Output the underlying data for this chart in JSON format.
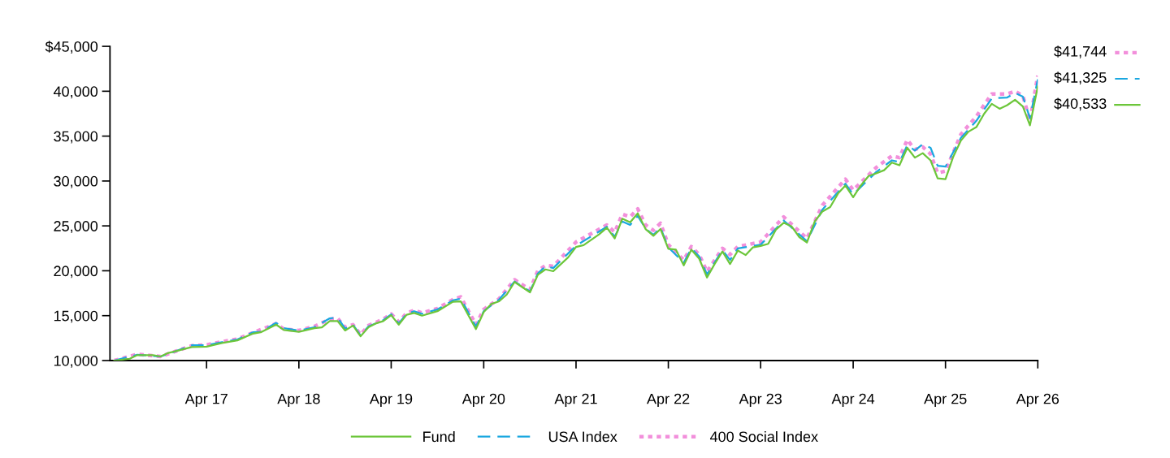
{
  "chart_data": {
    "type": "line",
    "xlim": [
      "2016-03-15",
      "2026-04"
    ],
    "xticks": [
      {
        "value": "2017-04",
        "label": "Apr 17"
      },
      {
        "value": "2018-04",
        "label": "Apr 18"
      },
      {
        "value": "2019-04",
        "label": "Apr 19"
      },
      {
        "value": "2020-04",
        "label": "Apr 20"
      },
      {
        "value": "2021-04",
        "label": "Apr 21"
      },
      {
        "value": "2022-04",
        "label": "Apr 22"
      },
      {
        "value": "2023-04",
        "label": "Apr 23"
      },
      {
        "value": "2024-04",
        "label": "Apr 24"
      },
      {
        "value": "2025-04",
        "label": "Apr 25"
      },
      {
        "value": "2026-04",
        "label": "Apr 26"
      }
    ],
    "ylim": [
      10000,
      45000
    ],
    "yticks": [
      {
        "value": 10000,
        "label": "10,000"
      },
      {
        "value": 15000,
        "label": "15,000"
      },
      {
        "value": 20000,
        "label": "20,000"
      },
      {
        "value": 25000,
        "label": "25,000"
      },
      {
        "value": 30000,
        "label": "30,000"
      },
      {
        "value": 35000,
        "label": "35,000"
      },
      {
        "value": 40000,
        "label": "40,000"
      },
      {
        "value": 45000,
        "label": "$45,000"
      }
    ],
    "grid": false,
    "legend": "bottom",
    "series": [
      {
        "name": "Fund",
        "color": "#6cc63a",
        "line_style": "solid",
        "x": [
          "2016-04",
          "2016-06",
          "2016-07",
          "2016-09",
          "2016-10",
          "2016-11",
          "2016-12",
          "2017-02",
          "2017-04",
          "2017-06",
          "2017-08",
          "2017-10",
          "2017-11",
          "2018-01",
          "2018-02",
          "2018-04",
          "2018-06",
          "2018-07",
          "2018-08",
          "2018-09",
          "2018-10",
          "2018-11",
          "2018-12",
          "2019-01",
          "2019-02",
          "2019-03",
          "2019-04",
          "2019-05",
          "2019-06",
          "2019-07",
          "2019-08",
          "2019-10",
          "2019-12",
          "2020-01",
          "2020-03",
          "2020-04",
          "2020-05",
          "2020-06",
          "2020-07",
          "2020-08",
          "2020-10",
          "2020-11",
          "2020-12",
          "2021-01",
          "2021-03",
          "2021-04",
          "2021-05",
          "2021-07",
          "2021-08",
          "2021-09",
          "2021-10",
          "2021-11",
          "2021-12",
          "2022-01",
          "2022-02",
          "2022-03",
          "2022-04",
          "2022-05",
          "2022-06",
          "2022-07",
          "2022-08",
          "2022-09",
          "2022-10",
          "2022-11",
          "2022-12",
          "2023-01",
          "2023-02",
          "2023-03",
          "2023-04",
          "2023-05",
          "2023-06",
          "2023-07",
          "2023-08",
          "2023-09",
          "2023-10",
          "2023-11",
          "2023-12",
          "2024-01",
          "2024-02",
          "2024-03",
          "2024-04",
          "2024-05",
          "2024-06",
          "2024-07",
          "2024-08",
          "2024-09",
          "2024-10",
          "2024-11",
          "2024-12",
          "2025-01",
          "2025-02",
          "2025-03",
          "2025-04",
          "2025-05",
          "2025-06",
          "2025-07",
          "2025-08",
          "2025-09",
          "2025-10",
          "2025-11",
          "2025-12",
          "2026-01",
          "2026-02",
          "2026-03",
          "2026-04"
        ],
        "values": [
          10000,
          10200,
          10600,
          10600,
          10450,
          10850,
          11050,
          11500,
          11550,
          11950,
          12250,
          13000,
          13150,
          14000,
          13400,
          13200,
          13600,
          13700,
          14400,
          14400,
          13350,
          13900,
          12700,
          13700,
          14150,
          14400,
          15050,
          14000,
          15100,
          15300,
          15000,
          15500,
          16550,
          16600,
          13500,
          15400,
          16300,
          16600,
          17350,
          18750,
          17600,
          19550,
          20150,
          19950,
          21500,
          22650,
          22850,
          24050,
          24800,
          23600,
          25800,
          25400,
          26400,
          24650,
          23900,
          24650,
          22450,
          22350,
          20600,
          22350,
          21350,
          19250,
          20750,
          22150,
          20750,
          22250,
          21750,
          22600,
          22770,
          23000,
          24600,
          25350,
          24950,
          23750,
          23150,
          25500,
          26600,
          27100,
          28600,
          29500,
          28200,
          29500,
          30550,
          30850,
          31200,
          32050,
          31750,
          33700,
          32600,
          33100,
          32300,
          30300,
          30200,
          32650,
          34500,
          35500,
          36000,
          37500,
          38600,
          38050,
          38450,
          39050,
          38300,
          36200,
          40533
        ],
        "value_labels": [
          null,
          null,
          null,
          null,
          null,
          null,
          null,
          null,
          null,
          null,
          null,
          null,
          null,
          null,
          null,
          null,
          null,
          null,
          null,
          null,
          null,
          null,
          null,
          null,
          null,
          null,
          null,
          null,
          null,
          null,
          null,
          null,
          null,
          null,
          null,
          null,
          null,
          null,
          null,
          null,
          null,
          null,
          null,
          null,
          null,
          null,
          null,
          null,
          null,
          null,
          null,
          null,
          null,
          null,
          null,
          null,
          null,
          null,
          null,
          null,
          null,
          null,
          null,
          null,
          null,
          null,
          null,
          null,
          null,
          null,
          null,
          null,
          null,
          null,
          null,
          null,
          null,
          null,
          null,
          null,
          null,
          null,
          null,
          null,
          null,
          null,
          null,
          null,
          null,
          null,
          null,
          null,
          null,
          null,
          null,
          null,
          null,
          null,
          null,
          null,
          null,
          null,
          null,
          null,
          "$40,533"
        ]
      },
      {
        "name": "USA Index",
        "color": "#1aa7e0",
        "line_style": "dashed",
        "x": [
          "2016-04",
          "2016-07",
          "2016-10",
          "2016-12",
          "2017-02",
          "2017-04",
          "2017-06",
          "2017-08",
          "2017-10",
          "2017-11",
          "2018-01",
          "2018-02",
          "2018-04",
          "2018-06",
          "2018-08",
          "2018-09",
          "2018-10",
          "2018-11",
          "2018-12",
          "2019-01",
          "2019-03",
          "2019-04",
          "2019-05",
          "2019-06",
          "2019-07",
          "2019-08",
          "2019-10",
          "2019-12",
          "2020-01",
          "2020-03",
          "2020-04",
          "2020-06",
          "2020-08",
          "2020-10",
          "2020-11",
          "2020-12",
          "2021-01",
          "2021-04",
          "2021-08",
          "2021-09",
          "2021-10",
          "2021-11",
          "2021-12",
          "2022-01",
          "2022-02",
          "2022-03",
          "2022-04",
          "2022-06",
          "2022-07",
          "2022-08",
          "2022-09",
          "2022-11",
          "2022-12",
          "2023-01",
          "2023-04",
          "2023-07",
          "2023-10",
          "2023-12",
          "2024-03",
          "2024-04",
          "2024-07",
          "2024-09",
          "2024-10",
          "2024-11",
          "2024-12",
          "2025-01",
          "2025-02",
          "2025-03",
          "2025-04",
          "2025-06",
          "2025-08",
          "2025-10",
          "2025-12",
          "2026-01",
          "2026-02",
          "2026-03",
          "2026-04"
        ],
        "values": [
          10000,
          10650,
          10450,
          11050,
          11700,
          11700,
          12050,
          12350,
          13150,
          13200,
          14200,
          13600,
          13350,
          13700,
          14700,
          14800,
          13550,
          14000,
          12800,
          13800,
          14500,
          15150,
          14150,
          15200,
          15500,
          15200,
          15700,
          16700,
          16900,
          13800,
          15500,
          16800,
          18800,
          17700,
          19700,
          20500,
          20300,
          22800,
          24900,
          23800,
          25500,
          25100,
          26100,
          24700,
          24000,
          24800,
          22600,
          20900,
          22500,
          21600,
          19600,
          22300,
          21200,
          22500,
          22900,
          25600,
          23300,
          26800,
          29700,
          28500,
          31000,
          32300,
          32100,
          34000,
          33400,
          34100,
          33700,
          31700,
          31600,
          34800,
          36700,
          39200,
          39300,
          39800,
          39400,
          37000,
          41325
        ],
        "value_labels": [
          null,
          null,
          null,
          null,
          null,
          null,
          null,
          null,
          null,
          null,
          null,
          null,
          null,
          null,
          null,
          null,
          null,
          null,
          null,
          null,
          null,
          null,
          null,
          null,
          null,
          null,
          null,
          null,
          null,
          null,
          null,
          null,
          null,
          null,
          null,
          null,
          null,
          null,
          null,
          null,
          null,
          null,
          null,
          null,
          null,
          null,
          null,
          null,
          null,
          null,
          null,
          null,
          null,
          null,
          null,
          null,
          null,
          null,
          null,
          null,
          null,
          null,
          null,
          null,
          null,
          null,
          null,
          null,
          null,
          null,
          null,
          null,
          null,
          null,
          null,
          null,
          "$41,325"
        ]
      },
      {
        "name": "400 Social Index",
        "color": "#f28fdb",
        "line_style": "dotted",
        "x": [
          "2016-04",
          "2016-07",
          "2016-10",
          "2016-12",
          "2017-02",
          "2017-04",
          "2017-06",
          "2017-08",
          "2017-10",
          "2018-01",
          "2018-02",
          "2018-04",
          "2018-06",
          "2018-08",
          "2018-09",
          "2018-10",
          "2018-11",
          "2018-12",
          "2019-01",
          "2019-03",
          "2019-04",
          "2019-05",
          "2019-06",
          "2019-07",
          "2019-08",
          "2019-10",
          "2019-12",
          "2020-01",
          "2020-03",
          "2020-04",
          "2020-06",
          "2020-08",
          "2020-10",
          "2020-11",
          "2020-12",
          "2021-01",
          "2021-04",
          "2021-08",
          "2021-09",
          "2021-10",
          "2021-11",
          "2021-12",
          "2022-01",
          "2022-02",
          "2022-03",
          "2022-04",
          "2022-06",
          "2022-07",
          "2022-08",
          "2022-09",
          "2022-11",
          "2022-12",
          "2023-01",
          "2023-04",
          "2023-07",
          "2023-10",
          "2023-12",
          "2024-03",
          "2024-04",
          "2024-07",
          "2024-09",
          "2024-10",
          "2024-11",
          "2024-12",
          "2025-01",
          "2025-02",
          "2025-03",
          "2025-04",
          "2025-06",
          "2025-08",
          "2025-10",
          "2025-12",
          "2026-01",
          "2026-02",
          "2026-03",
          "2026-04"
        ],
        "values": [
          10000,
          10700,
          10450,
          11050,
          11650,
          11750,
          12100,
          12400,
          13100,
          14100,
          13500,
          13350,
          13800,
          14600,
          14700,
          13700,
          14000,
          12900,
          13900,
          14600,
          15200,
          14300,
          15300,
          15600,
          15300,
          15800,
          16800,
          17100,
          14000,
          15700,
          16900,
          19000,
          17900,
          20000,
          20600,
          20500,
          23200,
          25100,
          24300,
          26300,
          26000,
          26900,
          25100,
          24500,
          25300,
          22900,
          21200,
          22700,
          21800,
          19900,
          22500,
          21800,
          22700,
          23200,
          26000,
          23600,
          27300,
          30200,
          29000,
          31500,
          32800,
          32600,
          34600,
          33500,
          33800,
          33000,
          30900,
          31100,
          35200,
          37200,
          39700,
          39700,
          40000,
          39500,
          36700,
          41744
        ],
        "value_labels": [
          null,
          null,
          null,
          null,
          null,
          null,
          null,
          null,
          null,
          null,
          null,
          null,
          null,
          null,
          null,
          null,
          null,
          null,
          null,
          null,
          null,
          null,
          null,
          null,
          null,
          null,
          null,
          null,
          null,
          null,
          null,
          null,
          null,
          null,
          null,
          null,
          null,
          null,
          null,
          null,
          null,
          null,
          null,
          null,
          null,
          null,
          null,
          null,
          null,
          null,
          null,
          null,
          null,
          null,
          null,
          null,
          null,
          null,
          null,
          null,
          null,
          null,
          null,
          null,
          null,
          null,
          null,
          null,
          null,
          null,
          null,
          null,
          null,
          null,
          null,
          "$41,744"
        ]
      }
    ]
  }
}
